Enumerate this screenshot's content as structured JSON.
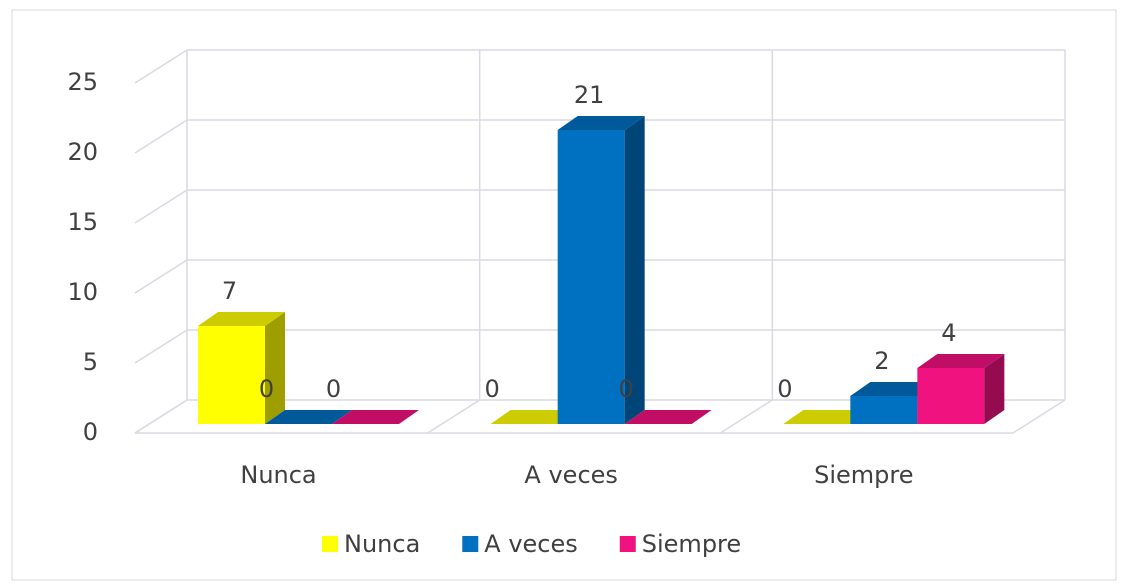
{
  "chart_data": {
    "type": "bar3d",
    "categories": [
      "Nunca",
      "A veces",
      "Siempre"
    ],
    "series": [
      {
        "name": "Nunca",
        "color": "#ffff00",
        "values": [
          7,
          0,
          0
        ]
      },
      {
        "name": "A veces",
        "color": "#0070c0",
        "values": [
          0,
          21,
          2
        ]
      },
      {
        "name": "Siempre",
        "color": "#f0127f",
        "values": [
          0,
          0,
          4
        ]
      }
    ],
    "ylim": [
      0,
      25
    ],
    "yticks": [
      0,
      5,
      10,
      15,
      20,
      25
    ],
    "grid": true,
    "legend": "bottom"
  }
}
